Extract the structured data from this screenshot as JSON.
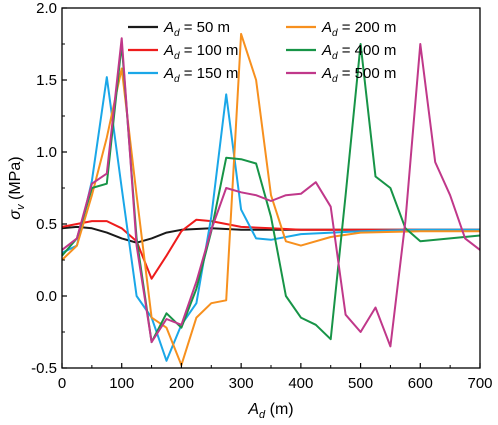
{
  "chart_data": {
    "type": "line",
    "title": "",
    "xlabel": {
      "main": "A",
      "sub": "d",
      "unit": " (m)"
    },
    "ylabel": {
      "main": "σ",
      "sub": "v",
      "unit": " (MPa)"
    },
    "xlim": [
      0,
      700
    ],
    "ylim": [
      -0.5,
      2.0
    ],
    "xticks": [
      0,
      100,
      200,
      300,
      400,
      500,
      600,
      700
    ],
    "yticks": [
      -0.5,
      0.0,
      0.5,
      1.0,
      1.5,
      2.0
    ],
    "xtick_labels": [
      "0",
      "100",
      "200",
      "300",
      "400",
      "500",
      "600",
      "700"
    ],
    "ytick_labels": [
      "-0.5",
      "0.0",
      "0.5",
      "1.0",
      "1.5",
      "2.0"
    ],
    "grid": false,
    "legend_placement": "top",
    "series": [
      {
        "name": "A_d = 50 m",
        "legend": {
          "main": "A",
          "sub": "d",
          "rest": " = 50 m"
        },
        "color": "#1a1a1a",
        "x": [
          0,
          25,
          50,
          75,
          100,
          125,
          150,
          175,
          200,
          250,
          300,
          400,
          500,
          600,
          700
        ],
        "y": [
          0.47,
          0.48,
          0.47,
          0.44,
          0.4,
          0.37,
          0.4,
          0.44,
          0.46,
          0.47,
          0.46,
          0.46,
          0.46,
          0.46,
          0.46
        ]
      },
      {
        "name": "A_d = 100 m",
        "legend": {
          "main": "A",
          "sub": "d",
          "rest": " = 100 m"
        },
        "color": "#ee1c1c",
        "x": [
          0,
          25,
          50,
          75,
          100,
          125,
          150,
          175,
          200,
          225,
          250,
          275,
          300,
          350,
          400,
          500,
          600,
          700
        ],
        "y": [
          0.48,
          0.5,
          0.52,
          0.52,
          0.47,
          0.38,
          0.12,
          0.28,
          0.45,
          0.53,
          0.52,
          0.5,
          0.48,
          0.47,
          0.46,
          0.46,
          0.46,
          0.46
        ]
      },
      {
        "name": "A_d = 150 m",
        "legend": {
          "main": "A",
          "sub": "d",
          "rest": " = 150 m"
        },
        "color": "#1aa7e8",
        "x": [
          0,
          25,
          50,
          75,
          100,
          125,
          150,
          175,
          200,
          225,
          250,
          275,
          300,
          325,
          350,
          400,
          500,
          600,
          700
        ],
        "y": [
          0.3,
          0.35,
          0.8,
          1.52,
          0.75,
          0.0,
          -0.15,
          -0.45,
          -0.2,
          -0.05,
          0.55,
          1.4,
          0.6,
          0.4,
          0.39,
          0.43,
          0.45,
          0.46,
          0.46
        ]
      },
      {
        "name": "A_d = 200 m",
        "legend": {
          "main": "A",
          "sub": "d",
          "rest": " = 200 m"
        },
        "color": "#f7901e",
        "x": [
          0,
          25,
          50,
          75,
          100,
          125,
          150,
          175,
          200,
          225,
          250,
          275,
          300,
          325,
          350,
          375,
          400,
          450,
          500,
          600,
          700
        ],
        "y": [
          0.25,
          0.35,
          0.7,
          1.1,
          1.58,
          0.7,
          -0.15,
          -0.22,
          -0.48,
          -0.15,
          -0.05,
          -0.03,
          1.82,
          1.5,
          0.7,
          0.38,
          0.35,
          0.41,
          0.44,
          0.45,
          0.45
        ]
      },
      {
        "name": "A_d = 400 m",
        "legend": {
          "main": "A",
          "sub": "d",
          "rest": " = 400 m"
        },
        "color": "#179447",
        "x": [
          0,
          25,
          50,
          75,
          100,
          125,
          150,
          175,
          200,
          225,
          250,
          275,
          300,
          325,
          350,
          375,
          400,
          425,
          450,
          475,
          500,
          525,
          550,
          575,
          600,
          650,
          700
        ],
        "y": [
          0.28,
          0.4,
          0.75,
          0.78,
          1.75,
          0.4,
          -0.32,
          -0.12,
          -0.22,
          0.05,
          0.45,
          0.96,
          0.95,
          0.92,
          0.55,
          0.0,
          -0.15,
          -0.2,
          -0.3,
          0.7,
          1.75,
          0.83,
          0.75,
          0.47,
          0.38,
          0.4,
          0.42
        ]
      },
      {
        "name": "A_d = 500 m",
        "legend": {
          "main": "A",
          "sub": "d",
          "rest": " = 500 m"
        },
        "color": "#c0388a",
        "x": [
          0,
          25,
          50,
          75,
          100,
          125,
          150,
          175,
          200,
          225,
          250,
          275,
          300,
          325,
          350,
          375,
          400,
          425,
          450,
          475,
          500,
          525,
          550,
          575,
          600,
          625,
          650,
          675,
          700
        ],
        "y": [
          0.32,
          0.4,
          0.78,
          0.85,
          1.79,
          0.35,
          -0.32,
          -0.16,
          -0.2,
          0.1,
          0.46,
          0.75,
          0.72,
          0.7,
          0.66,
          0.7,
          0.71,
          0.79,
          0.62,
          -0.13,
          -0.25,
          -0.08,
          -0.35,
          0.52,
          1.75,
          0.93,
          0.7,
          0.4,
          0.32
        ]
      }
    ]
  }
}
